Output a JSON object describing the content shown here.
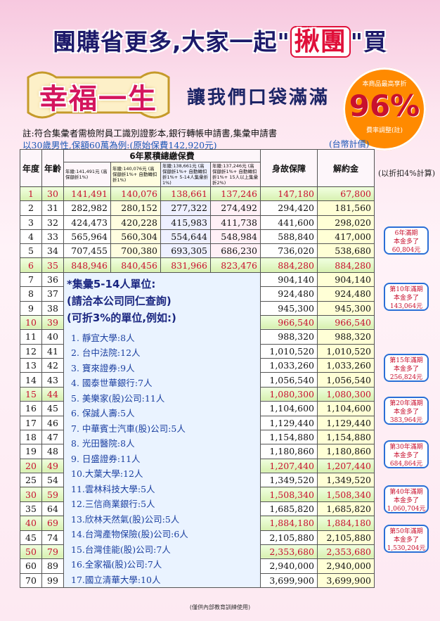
{
  "headline": {
    "pre": "團購省更多,大家一起\"",
    "red": "揪團",
    "post": "\"買"
  },
  "slogan": "幸福一生",
  "subslogan": "讓我們口袋滿滿",
  "badge": {
    "top": "本商品最高享折",
    "percent": "96%",
    "bottom": "費率調整(註)"
  },
  "notes": {
    "line1": "註:符合集彙者需檢附員工識別證影本,銀行轉帳申請書,集彙申請書",
    "line2": "以30歲男性,保額60萬為例:(原始保費142,920元)",
    "unit": "(台幣計價)",
    "discount": "(以折扣4%計算)"
  },
  "table": {
    "group_header": "6年累積總繳保費",
    "col_year": "年度",
    "col_age": "年齡",
    "col_p1": "年繳:141,491元 (高保額折1%)",
    "col_p2": "年繳:140,076元 (高保額折1%+ 自動轉扣折1%)",
    "col_p3": "年繳:138,661元 (高保額折1%+ 自動轉扣折1%+ 5-14人集彙折1%)",
    "col_p4": "年繳:137,246元 (高保額折1%+ 自動轉扣折1%+ 15人以上集彙折2%)",
    "col_death": "身故保障",
    "col_cash": "解約金",
    "top_rows": [
      {
        "y": "1",
        "a": "30",
        "p1": "141,491",
        "p2": "140,076",
        "p3": "138,661",
        "p4": "137,246",
        "d": "147,180",
        "c": "67,800",
        "hl": true
      },
      {
        "y": "2",
        "a": "31",
        "p1": "282,982",
        "p2": "280,152",
        "p3": "277,322",
        "p4": "274,492",
        "d": "294,420",
        "c": "181,560",
        "hl": false
      },
      {
        "y": "3",
        "a": "32",
        "p1": "424,473",
        "p2": "420,228",
        "p3": "415,983",
        "p4": "411,738",
        "d": "441,600",
        "c": "298,020",
        "hl": false
      },
      {
        "y": "4",
        "a": "33",
        "p1": "565,964",
        "p2": "560,304",
        "p3": "554,644",
        "p4": "548,984",
        "d": "588,840",
        "c": "417,000",
        "hl": false
      },
      {
        "y": "5",
        "a": "34",
        "p1": "707,455",
        "p2": "700,380",
        "p3": "693,305",
        "p4": "686,230",
        "d": "736,020",
        "c": "538,680",
        "hl": false
      },
      {
        "y": "6",
        "a": "35",
        "p1": "848,946",
        "p2": "840,456",
        "p3": "831,966",
        "p4": "823,476",
        "d": "884,280",
        "c": "884,280",
        "hl": true
      }
    ],
    "bottom_rows": [
      {
        "y": "7",
        "a": "36",
        "d": "904,140",
        "c": "904,140",
        "hl": false
      },
      {
        "y": "8",
        "a": "37",
        "d": "924,480",
        "c": "924,480",
        "hl": false
      },
      {
        "y": "9",
        "a": "38",
        "d": "945,300",
        "c": "945,300",
        "hl": false
      },
      {
        "y": "10",
        "a": "39",
        "d": "966,540",
        "c": "966,540",
        "hl": true
      },
      {
        "y": "11",
        "a": "40",
        "d": "988,320",
        "c": "988,320",
        "hl": false
      },
      {
        "y": "12",
        "a": "41",
        "d": "1,010,520",
        "c": "1,010,520",
        "hl": false
      },
      {
        "y": "13",
        "a": "42",
        "d": "1,033,260",
        "c": "1,033,260",
        "hl": false
      },
      {
        "y": "14",
        "a": "43",
        "d": "1,056,540",
        "c": "1,056,540",
        "hl": false
      },
      {
        "y": "15",
        "a": "44",
        "d": "1,080,300",
        "c": "1,080,300",
        "hl": true
      },
      {
        "y": "16",
        "a": "45",
        "d": "1,104,600",
        "c": "1,104,600",
        "hl": false
      },
      {
        "y": "17",
        "a": "46",
        "d": "1,129,440",
        "c": "1,129,440",
        "hl": false
      },
      {
        "y": "18",
        "a": "47",
        "d": "1,154,880",
        "c": "1,154,880",
        "hl": false
      },
      {
        "y": "19",
        "a": "48",
        "d": "1,180,860",
        "c": "1,180,860",
        "hl": false
      },
      {
        "y": "20",
        "a": "49",
        "d": "1,207,440",
        "c": "1,207,440",
        "hl": true
      },
      {
        "y": "25",
        "a": "54",
        "d": "1,349,520",
        "c": "1,349,520",
        "hl": false
      },
      {
        "y": "30",
        "a": "59",
        "d": "1,508,340",
        "c": "1,508,340",
        "hl": true
      },
      {
        "y": "35",
        "a": "64",
        "d": "1,685,820",
        "c": "1,685,820",
        "hl": false
      },
      {
        "y": "40",
        "a": "69",
        "d": "1,884,180",
        "c": "1,884,180",
        "hl": true
      },
      {
        "y": "45",
        "a": "74",
        "d": "2,105,880",
        "c": "2,105,880",
        "hl": false
      },
      {
        "y": "50",
        "a": "79",
        "d": "2,353,680",
        "c": "2,353,680",
        "hl": true
      },
      {
        "y": "60",
        "a": "89",
        "d": "2,940,000",
        "c": "2,940,000",
        "hl": false
      },
      {
        "y": "70",
        "a": "99",
        "d": "3,699,900",
        "c": "3,699,900",
        "hl": false
      }
    ]
  },
  "group_list": {
    "title1": "*集彙5-14人單位:",
    "title2": "(請洽本公司同仁查詢)",
    "title3": "(可折3%的單位,例如:)",
    "items": [
      "1. 靜宜大學:8人",
      "2. 台中法院:12人",
      "3. 寶來證券:9人",
      "4. 國泰世華銀行:7人",
      "5. 美樂家(股)公司:11人",
      "6. 保誠人壽:5人",
      "7. 中華賓士汽車(股)公司:5人",
      "8. 光田醫院:8人",
      "9. 日盛證券:11人",
      "10.大葉大學:12人",
      "11.雲林科技大學:5人",
      "12.三信商業銀行:5人",
      "13.欣林天然氣(股)公司:5人",
      "14.台灣產物保險(股)公司:6人",
      "15.台灣佳能(股)公司:7人",
      "16.全家福(股)公司:7人",
      "17.國立清華大學:10人"
    ]
  },
  "bubbles": [
    {
      "l1": "6年滿期",
      "l2": "本金多了",
      "l3": "60,804元"
    },
    {
      "l1": "第10年滿期",
      "l2": "本金多了",
      "l3": "143,064元"
    },
    {
      "l1": "第15年滿期",
      "l2": "本金多了",
      "l3": "256,824元"
    },
    {
      "l1": "第20年滿期",
      "l2": "本金多了",
      "l3": "383,964元"
    },
    {
      "l1": "第30年滿期",
      "l2": "本金多了",
      "l3": "684,864元"
    },
    {
      "l1": "第40年滿期",
      "l2": "本金多了",
      "l3": "1,060,704元"
    },
    {
      "l1": "第50年滿期",
      "l2": "本金多了",
      "l3": "1,530,204元"
    }
  ],
  "footer": "(僅供內部教育訓練使用)"
}
